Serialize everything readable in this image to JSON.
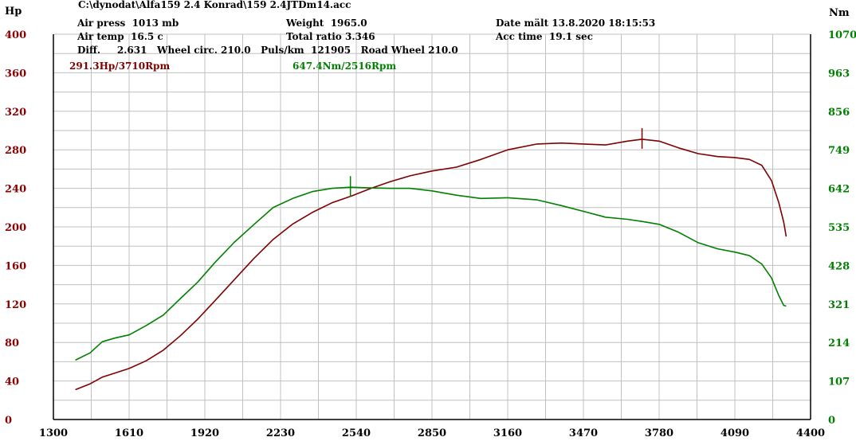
{
  "header": {
    "filepath": "C:\\dynodat\\Alfa159 2.4 Konrad\\159 2.4JTDm14.acc",
    "air_press": "Air press  1013 mb",
    "air_temp": "Air temp  16.5 c",
    "diff_line": "Diff.     2.631   Wheel circ. 210.0   Puls/km  121905   Road Wheel 210.0",
    "weight": "Weight  1965.0",
    "total_ratio": "Total ratio 3.346",
    "date": "Date mält 13.8.2020 18:15:53",
    "acc_time": "Acc time  19.1 sec"
  },
  "peaks": {
    "power": "291.3Hp/3710Rpm",
    "torque": "647.4Nm/2516Rpm"
  },
  "colors": {
    "power": "#800000",
    "torque": "#008000",
    "axis_left": "#8b0000",
    "axis_right": "#008000",
    "grid": "#c0c0c0"
  },
  "chart_data": {
    "type": "line",
    "y_left_label": "Hp",
    "y_right_label": "Nm",
    "x_ticks": [
      1300,
      1610,
      1920,
      2230,
      2540,
      2850,
      3160,
      3470,
      3780,
      4090,
      4400
    ],
    "x_range": [
      1300,
      4400
    ],
    "y_left_ticks": [
      0,
      40,
      80,
      120,
      160,
      200,
      240,
      280,
      320,
      360,
      400
    ],
    "y_left_range": [
      0,
      400
    ],
    "y_right_ticks": [
      0,
      107,
      214,
      321,
      428,
      535,
      642,
      749,
      856,
      963,
      1070
    ],
    "y_right_range": [
      0,
      1070
    ],
    "grid": true,
    "series": [
      {
        "name": "power",
        "axis": "left",
        "x": [
          1390,
          1450,
          1500,
          1550,
          1610,
          1680,
          1750,
          1820,
          1890,
          1960,
          2040,
          2120,
          2200,
          2280,
          2360,
          2440,
          2520,
          2600,
          2680,
          2760,
          2850,
          2950,
          3050,
          3160,
          3280,
          3380,
          3470,
          3560,
          3650,
          3710,
          3780,
          3860,
          3940,
          4020,
          4090,
          4150,
          4200,
          4240,
          4270,
          4290,
          4300
        ],
        "y": [
          31,
          37,
          44,
          48,
          53,
          61,
          72,
          87,
          104,
          123,
          145,
          167,
          187,
          203,
          215,
          225,
          232,
          240,
          247,
          253,
          258,
          262,
          270,
          280,
          286,
          287,
          286,
          285,
          289,
          291,
          289,
          282,
          276,
          273,
          272,
          270,
          264,
          248,
          225,
          205,
          190
        ]
      },
      {
        "name": "torque",
        "axis": "right",
        "x": [
          1390,
          1450,
          1500,
          1550,
          1610,
          1680,
          1750,
          1820,
          1890,
          1960,
          2040,
          2120,
          2200,
          2280,
          2360,
          2440,
          2516,
          2600,
          2680,
          2760,
          2850,
          2950,
          3050,
          3160,
          3280,
          3380,
          3470,
          3560,
          3650,
          3710,
          3780,
          3860,
          3940,
          4020,
          4090,
          4150,
          4200,
          4240,
          4270,
          4290,
          4300
        ],
        "y": [
          165,
          185,
          216,
          226,
          235,
          261,
          290,
          336,
          381,
          435,
          492,
          541,
          589,
          614,
          633,
          642,
          645,
          643,
          642,
          642,
          635,
          623,
          614,
          616,
          610,
          594,
          578,
          562,
          556,
          550,
          542,
          520,
          491,
          474,
          465,
          455,
          432,
          393,
          344,
          317,
          315
        ]
      }
    ]
  }
}
